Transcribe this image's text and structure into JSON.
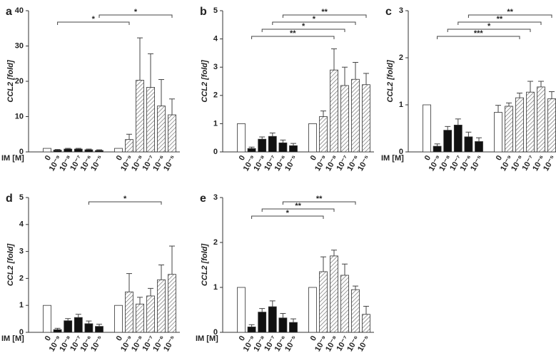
{
  "chart_data": [
    {
      "type": "bar",
      "panel": "a",
      "ylabel": "CCL2 [fold]",
      "xlabel": "IM [M]",
      "categories": [
        "0",
        "10⁻⁹",
        "10⁻⁸",
        "10⁻⁷",
        "10⁻⁶",
        "10⁻⁵",
        "0",
        "10⁻⁹",
        "10⁻⁸",
        "10⁻⁷",
        "10⁻⁶",
        "10⁻⁵"
      ],
      "bar_styles": [
        "open",
        "solid",
        "solid",
        "solid",
        "solid",
        "solid",
        "open",
        "hatched",
        "hatched",
        "hatched",
        "hatched",
        "hatched"
      ],
      "values": [
        1,
        0.5,
        0.8,
        0.8,
        0.6,
        0.4,
        1,
        3.5,
        20.3,
        18.3,
        13,
        10.5
      ],
      "errors": [
        0,
        0.2,
        0.2,
        0.2,
        0.2,
        0.2,
        0,
        1.5,
        12,
        9.5,
        7.5,
        4.5
      ],
      "ylim": [
        0,
        40
      ],
      "yticks": [
        0,
        10,
        20,
        30,
        40
      ],
      "brackets": [
        {
          "from": 1,
          "to": 7,
          "label": "*"
        },
        {
          "from": 5,
          "to": 11,
          "label": "*"
        }
      ]
    },
    {
      "type": "bar",
      "panel": "b",
      "ylabel": "CCL2 [fold]",
      "categories": [
        "0",
        "10⁻⁹",
        "10⁻⁸",
        "10⁻⁷",
        "10⁻⁶",
        "10⁻⁵",
        "0",
        "10⁻⁹",
        "10⁻⁸",
        "10⁻⁷",
        "10⁻⁶",
        "10⁻⁵"
      ],
      "bar_styles": [
        "open",
        "solid",
        "solid",
        "solid",
        "solid",
        "solid",
        "open",
        "hatched",
        "hatched",
        "hatched",
        "hatched",
        "hatched"
      ],
      "values": [
        1,
        0.12,
        0.45,
        0.55,
        0.32,
        0.22,
        1,
        1.25,
        2.9,
        2.35,
        2.57,
        2.38
      ],
      "errors": [
        0,
        0.05,
        0.08,
        0.12,
        0.1,
        0.08,
        0,
        0.2,
        0.75,
        0.65,
        0.6,
        0.4
      ],
      "ylim": [
        0,
        5
      ],
      "yticks": [
        0,
        1,
        2,
        3,
        4,
        5
      ],
      "brackets": [
        {
          "from": 1,
          "to": 8,
          "label": "**"
        },
        {
          "from": 2,
          "to": 9,
          "label": "*"
        },
        {
          "from": 3,
          "to": 10,
          "label": "*"
        },
        {
          "from": 4,
          "to": 11,
          "label": "**"
        }
      ]
    },
    {
      "type": "bar",
      "panel": "c",
      "ylabel": "CCL2 [fold]",
      "xlabel": "IM [M]",
      "categories": [
        "0",
        "10⁻⁹",
        "10⁻⁸",
        "10⁻⁷",
        "10⁻⁶",
        "10⁻⁵",
        "0",
        "10⁻⁹",
        "10⁻⁸",
        "10⁻⁷",
        "10⁻⁶",
        "10⁻⁵"
      ],
      "bar_styles": [
        "open",
        "solid",
        "solid",
        "solid",
        "solid",
        "solid",
        "open",
        "hatched",
        "hatched",
        "hatched",
        "hatched",
        "hatched"
      ],
      "values": [
        1,
        0.12,
        0.46,
        0.57,
        0.32,
        0.22,
        0.84,
        0.97,
        1.15,
        1.27,
        1.38,
        1.13
      ],
      "errors": [
        0,
        0.05,
        0.08,
        0.13,
        0.1,
        0.08,
        0.15,
        0.07,
        0.1,
        0.23,
        0.12,
        0.15
      ],
      "ylim": [
        0,
        3
      ],
      "yticks": [
        0,
        1,
        2,
        3
      ],
      "brackets": [
        {
          "from": 1,
          "to": 8,
          "label": "***"
        },
        {
          "from": 2,
          "to": 9,
          "label": "*"
        },
        {
          "from": 3,
          "to": 10,
          "label": "**"
        },
        {
          "from": 4,
          "to": 11,
          "label": "**"
        }
      ]
    },
    {
      "type": "bar",
      "panel": "d",
      "ylabel": "CCL2 [fold]",
      "xlabel": "IM [M]",
      "categories": [
        "0",
        "10⁻⁹",
        "10⁻⁸",
        "10⁻⁷",
        "10⁻⁶",
        "10⁻⁵",
        "0",
        "10⁻⁹",
        "10⁻⁸",
        "10⁻⁷",
        "10⁻⁶",
        "10⁻⁵"
      ],
      "bar_styles": [
        "open",
        "solid",
        "solid",
        "solid",
        "solid",
        "solid",
        "open",
        "hatched",
        "hatched",
        "hatched",
        "hatched",
        "hatched"
      ],
      "values": [
        1,
        0.1,
        0.43,
        0.55,
        0.32,
        0.22,
        1,
        1.5,
        1.05,
        1.35,
        1.95,
        2.15
      ],
      "errors": [
        0,
        0.05,
        0.08,
        0.12,
        0.1,
        0.08,
        0,
        0.68,
        0.25,
        0.28,
        0.55,
        1.05
      ],
      "ylim": [
        0,
        5
      ],
      "yticks": [
        0,
        1,
        2,
        3,
        4,
        5
      ],
      "brackets": [
        {
          "from": 4,
          "to": 10,
          "label": "*"
        }
      ]
    },
    {
      "type": "bar",
      "panel": "e",
      "ylabel": "CCL2 [fold]",
      "xlabel": "IM [M]",
      "categories": [
        "0",
        "10⁻⁹",
        "10⁻⁸",
        "10⁻⁷",
        "10⁻⁶",
        "10⁻⁵",
        "0",
        "10⁻⁹",
        "10⁻⁸",
        "10⁻⁷",
        "10⁻⁶",
        "10⁻⁵"
      ],
      "bar_styles": [
        "open",
        "solid",
        "solid",
        "solid",
        "solid",
        "solid",
        "open",
        "hatched",
        "hatched",
        "hatched",
        "hatched",
        "hatched"
      ],
      "values": [
        1,
        0.12,
        0.45,
        0.57,
        0.32,
        0.22,
        1,
        1.35,
        1.7,
        1.27,
        0.95,
        0.4
      ],
      "errors": [
        0,
        0.05,
        0.08,
        0.13,
        0.1,
        0.08,
        0,
        0.33,
        0.13,
        0.25,
        0.08,
        0.18
      ],
      "ylim": [
        0,
        3
      ],
      "yticks": [
        0,
        1,
        2,
        3
      ],
      "brackets": [
        {
          "from": 1,
          "to": 7,
          "label": "*"
        },
        {
          "from": 2,
          "to": 8,
          "label": "**"
        },
        {
          "from": 4,
          "to": 10,
          "label": "**"
        }
      ]
    }
  ]
}
